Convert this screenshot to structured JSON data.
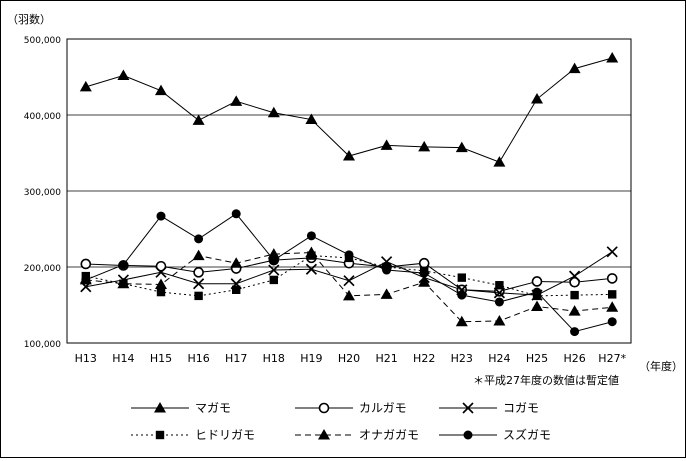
{
  "chart_data": {
    "type": "line",
    "ylabel": "（羽数）",
    "xlabel": "（年度）",
    "note": "＊平成27年度の数値は暫定値",
    "ylim": [
      100000,
      500000
    ],
    "yticks": [
      100000,
      200000,
      300000,
      400000,
      500000
    ],
    "ytick_labels": [
      "100,000",
      "200,000",
      "300,000",
      "400,000",
      "500,000"
    ],
    "grid": true,
    "legend_position": "bottom",
    "categories": [
      "H13",
      "H14",
      "H15",
      "H16",
      "H17",
      "H18",
      "H19",
      "H20",
      "H21",
      "H22",
      "H23",
      "H24",
      "H25",
      "H26",
      "H27*"
    ],
    "series": [
      {
        "name": "マガモ",
        "marker": "triangle",
        "dash": "solid",
        "values": [
          437000,
          452000,
          432000,
          393000,
          418000,
          403000,
          394000,
          346000,
          360000,
          358000,
          357000,
          338000,
          421000,
          461000,
          475000
        ]
      },
      {
        "name": "カルガモ",
        "marker": "circle-open",
        "dash": "solid",
        "values": [
          204000,
          202000,
          201000,
          193000,
          198000,
          209000,
          212000,
          205000,
          200000,
          205000,
          170000,
          168000,
          181000,
          180000,
          185000
        ]
      },
      {
        "name": "コガモ",
        "marker": "x",
        "dash": "solid",
        "values": [
          174000,
          183000,
          193000,
          178000,
          178000,
          196000,
          197000,
          182000,
          207000,
          186000,
          170000,
          166000,
          163000,
          188000,
          220000
        ]
      },
      {
        "name": "ヒドリガモ",
        "marker": "square",
        "dash": "dotted",
        "values": [
          188000,
          178000,
          167000,
          162000,
          170000,
          183000,
          215000,
          212000,
          200000,
          195000,
          186000,
          176000,
          162000,
          163000,
          164000
        ]
      },
      {
        "name": "オナガガモ",
        "marker": "triangle",
        "dash": "dashed",
        "values": [
          183000,
          178000,
          177000,
          215000,
          205000,
          217000,
          219000,
          162000,
          164000,
          180000,
          128000,
          129000,
          148000,
          142000,
          147000
        ]
      },
      {
        "name": "スズガモ",
        "marker": "circle-filled",
        "dash": "solid",
        "values": [
          183000,
          203000,
          267000,
          237000,
          270000,
          209000,
          241000,
          216000,
          196000,
          192000,
          163000,
          154000,
          167000,
          115000,
          128000
        ]
      }
    ]
  }
}
